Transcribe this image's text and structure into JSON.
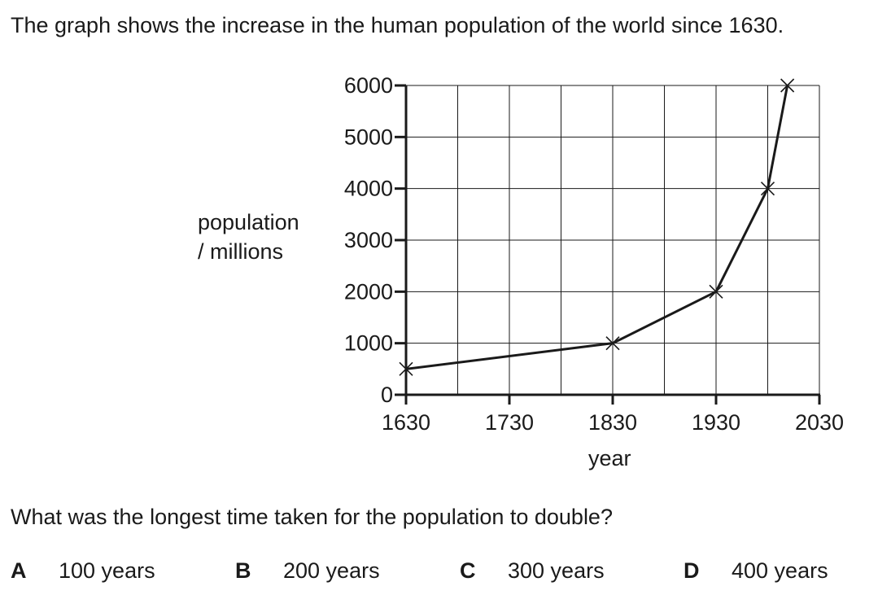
{
  "intro_text": "The graph shows the increase in the human population of the world since 1630.",
  "question_text": "What was the longest time taken for the population to double?",
  "options": [
    {
      "letter": "A",
      "text": "100 years"
    },
    {
      "letter": "B",
      "text": "200 years"
    },
    {
      "letter": "C",
      "text": "300 years"
    },
    {
      "letter": "D",
      "text": "400 years"
    }
  ],
  "chart_data": {
    "type": "line",
    "title": "",
    "xlabel": "year",
    "ylabel_lines": [
      "population",
      "/ millions"
    ],
    "xlim": [
      1630,
      2030
    ],
    "ylim": [
      0,
      6000
    ],
    "x_ticks": [
      1630,
      1730,
      1830,
      1930,
      2030
    ],
    "y_ticks": [
      0,
      1000,
      2000,
      3000,
      4000,
      5000,
      6000
    ],
    "grid": true,
    "marker": "x",
    "points": [
      {
        "x": 1630,
        "y": 500
      },
      {
        "x": 1830,
        "y": 1000
      },
      {
        "x": 1930,
        "y": 2000
      },
      {
        "x": 1980,
        "y": 4000
      },
      {
        "x": 1999,
        "y": 6000
      }
    ]
  }
}
